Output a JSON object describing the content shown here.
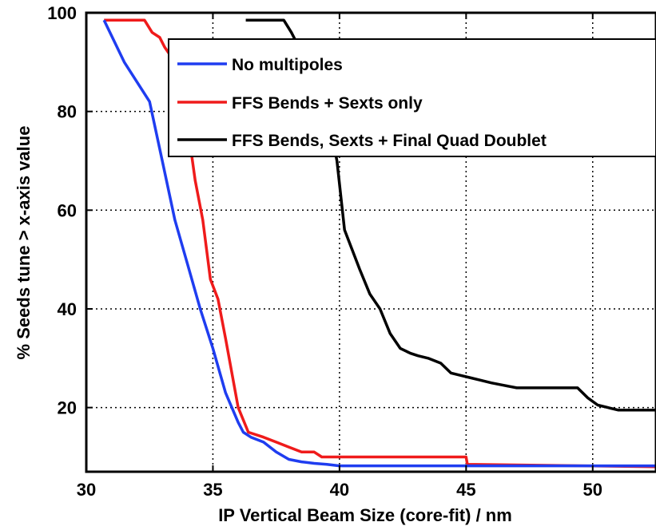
{
  "chart_data": {
    "type": "line",
    "title": "",
    "xlabel": "IP Vertical Beam Size (core-fit) / nm",
    "ylabel": "% Seeds tune > x-axis value",
    "xlim": [
      30,
      52.5
    ],
    "ylim": [
      7,
      100
    ],
    "xticks": [
      30,
      35,
      40,
      45,
      50
    ],
    "yticks": [
      20,
      40,
      60,
      80,
      100
    ],
    "grid": true,
    "legend_position": "top-right",
    "series": [
      {
        "name": "No multipoles",
        "color": "#1f3df0",
        "x": [
          30.7,
          31.5,
          32.5,
          33.0,
          33.5,
          34.0,
          34.5,
          35.0,
          35.5,
          36.0,
          36.2,
          36.5,
          37.0,
          37.5,
          38.0,
          38.5,
          39.0,
          39.5,
          40.0,
          45.0,
          52.5
        ],
        "y": [
          98.5,
          90,
          82,
          70,
          58,
          49,
          40,
          32,
          23,
          17,
          15,
          14,
          13,
          11,
          9.5,
          9,
          8.7,
          8.5,
          8.2,
          8.2,
          8.2
        ]
      },
      {
        "name": "FFS Bends + Sexts only",
        "color": "#ef1b1b",
        "x": [
          30.7,
          31.5,
          31.7,
          32.3,
          32.6,
          32.9,
          33.1,
          33.5,
          33.8,
          34.0,
          34.3,
          34.6,
          34.9,
          35.2,
          35.5,
          36.0,
          36.4,
          37.0,
          37.5,
          38.0,
          38.5,
          39.0,
          39.3,
          40.0,
          45.0,
          45.05,
          52.5
        ],
        "y": [
          98.5,
          98.5,
          98.5,
          98.5,
          96,
          95,
          93,
          90,
          85,
          77,
          66,
          58,
          46,
          42,
          34,
          20,
          15,
          14,
          13,
          12,
          11,
          11,
          10,
          10,
          10,
          8.5,
          8
        ],
        "step": true
      },
      {
        "name": "FFS Bends, Sexts + Final Quad Doublet",
        "color": "#000000",
        "x": [
          36.3,
          36.8,
          37.3,
          37.8,
          38.1,
          38.4,
          38.8,
          39.2,
          39.6,
          39.9,
          40.2,
          40.5,
          40.8,
          41.2,
          41.6,
          42.0,
          42.4,
          42.8,
          43.1,
          43.5,
          44.0,
          44.4,
          44.8,
          45.2,
          45.6,
          46.0,
          46.5,
          47.0,
          47.5,
          48.0,
          48.5,
          49.0,
          49.4,
          49.8,
          50.2,
          50.6,
          51.0,
          52.5
        ],
        "y": [
          98.5,
          98.5,
          98.5,
          98.5,
          96,
          93,
          90,
          84,
          78,
          70,
          56,
          52,
          48,
          43,
          40,
          35,
          32,
          31,
          30.5,
          30,
          29,
          27,
          26.5,
          26,
          25.5,
          25,
          24.5,
          24,
          24,
          24,
          24,
          24,
          24,
          22,
          20.5,
          20,
          19.5,
          19.5
        ],
        "step": true
      }
    ]
  }
}
